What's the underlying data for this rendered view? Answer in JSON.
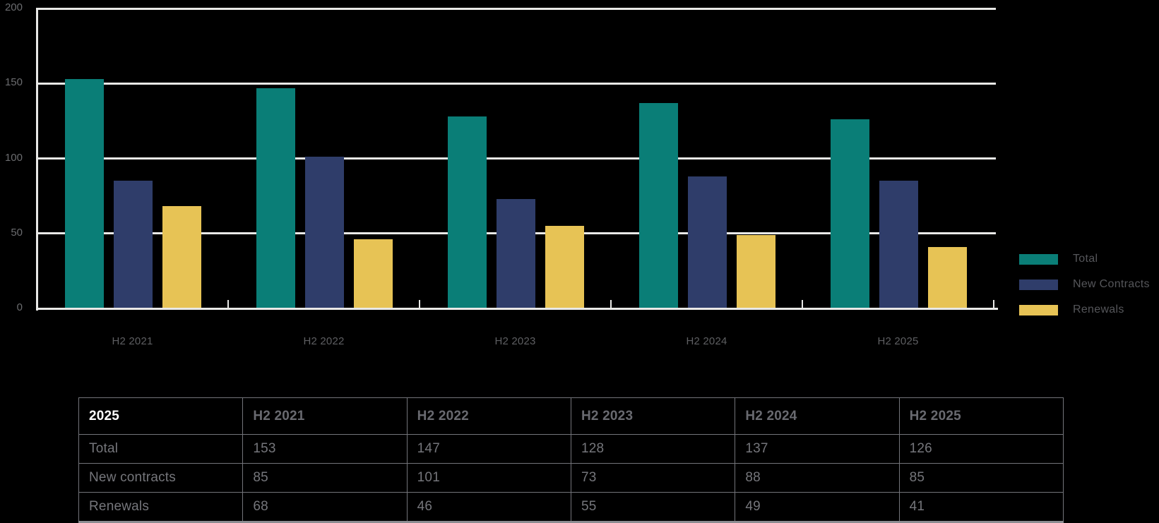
{
  "chart_data": {
    "type": "bar",
    "categories": [
      "H2 2021",
      "H2 2022",
      "H2 2023",
      "H2 2024",
      "H2 2025"
    ],
    "series": [
      {
        "name": "Total",
        "color": "#0A7E77",
        "values": [
          153,
          147,
          128,
          137,
          126
        ]
      },
      {
        "name": "New Contracts",
        "color": "#2F3D6A",
        "values": [
          85,
          101,
          73,
          88,
          85
        ]
      },
      {
        "name": "Renewals",
        "color": "#E7C355",
        "values": [
          68,
          46,
          55,
          49,
          41
        ]
      }
    ],
    "title": "",
    "xlabel": "",
    "ylabel": "",
    "ylim": [
      0,
      200
    ],
    "yticks": [
      0,
      50,
      100,
      150,
      200
    ],
    "grid": true,
    "legend_position": "right"
  },
  "table": {
    "corner_label": "2025",
    "columns": [
      "H2 2021",
      "H2 2022",
      "H2 2023",
      "H2 2024",
      "H2 2025"
    ],
    "rows": [
      {
        "label": "Total",
        "values": [
          "153",
          "147",
          "128",
          "137",
          "126"
        ]
      },
      {
        "label": "New contracts",
        "values": [
          "85",
          "101",
          "73",
          "88",
          "85"
        ]
      },
      {
        "label": "Renewals",
        "values": [
          "68",
          "46",
          "55",
          "49",
          "41"
        ]
      }
    ]
  },
  "colors": {
    "background": "#000000",
    "gridline": "#E9E9E7",
    "ytick_text": "#6B6C6F",
    "category_text": "#5E5F62",
    "legend_text": "#55565A",
    "table_border": "#73747A",
    "table_bottom_border": "#8B8C91",
    "table_cell_text": "#75767B",
    "table_header_text": "#696A70",
    "table_corner_text": "#FFFFFF"
  }
}
